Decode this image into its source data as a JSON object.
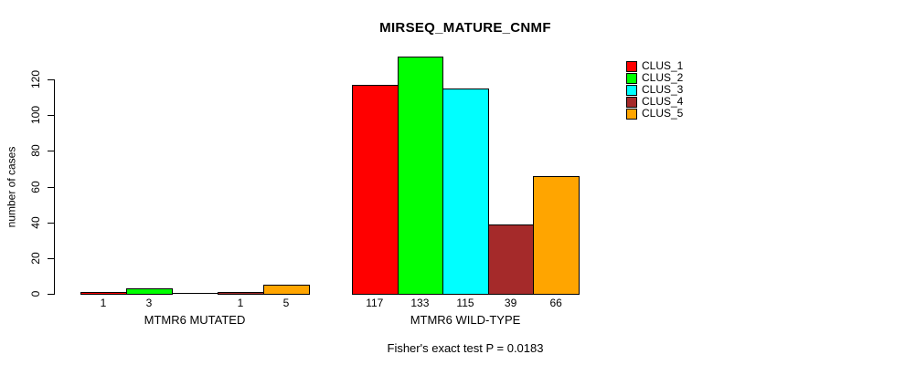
{
  "chart_data": {
    "type": "bar",
    "title": "MIRSEQ_MATURE_CNMF",
    "ylabel": "number of cases",
    "xlabel": "",
    "ylim": [
      0,
      120
    ],
    "yticks": [
      0,
      20,
      40,
      60,
      80,
      100,
      120
    ],
    "grid": false,
    "legend_position": "top-right",
    "categories": [
      "MTMR6 MUTATED",
      "MTMR6 WILD-TYPE"
    ],
    "series": [
      {
        "name": "CLUS_1",
        "color": "#FF0000",
        "values": [
          1,
          117
        ]
      },
      {
        "name": "CLUS_2",
        "color": "#00FF00",
        "values": [
          3,
          133
        ]
      },
      {
        "name": "CLUS_3",
        "color": "#00FFFF",
        "values": [
          0,
          115
        ]
      },
      {
        "name": "CLUS_4",
        "color": "#A52A2A",
        "values": [
          1,
          39
        ]
      },
      {
        "name": "CLUS_5",
        "color": "#FFA500",
        "values": [
          5,
          66
        ]
      }
    ],
    "bar_value_labels": [
      [
        "1",
        "3",
        "",
        "1",
        "5"
      ],
      [
        "117",
        "133",
        "115",
        "39",
        "66"
      ]
    ],
    "annotation": "Fisher's exact test P = 0.0183"
  }
}
